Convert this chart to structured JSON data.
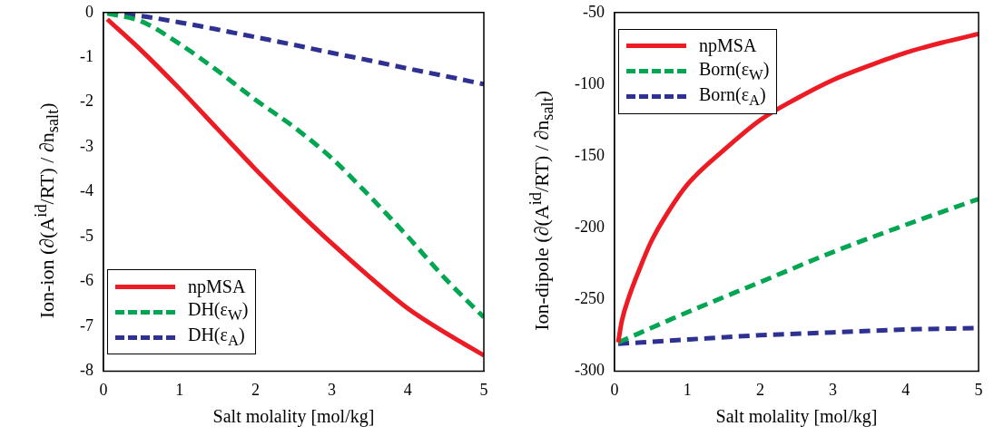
{
  "chart_data": [
    {
      "type": "line",
      "xlabel": "Salt molality [mol/kg]",
      "ylabel": "Ion-ion (∂(A$^{id}$/RT) / ∂n$_{salt}$)",
      "xlim": [
        0,
        5
      ],
      "xticks": [
        0,
        1,
        2,
        3,
        4,
        5
      ],
      "ylim": [
        -8,
        0
      ],
      "yticks": [
        -8,
        -7,
        -6,
        -5,
        -4,
        -3,
        -2,
        -1,
        0
      ],
      "grid": false,
      "legend": "bottom left",
      "marker": "none",
      "series": [
        {
          "name": "npMSA",
          "color": "#ed1c24",
          "line_style": "solid",
          "x": [
            0.05,
            0.5,
            1,
            1.5,
            2,
            2.5,
            3,
            3.5,
            4,
            4.5,
            5
          ],
          "values": [
            -0.15,
            -0.85,
            -1.7,
            -2.6,
            -3.5,
            -4.35,
            -5.15,
            -5.9,
            -6.6,
            -7.15,
            -7.65
          ]
        },
        {
          "name": "DH(ε$_{W}$)",
          "color": "#00a651",
          "line_style": "dashed",
          "x": [
            0.05,
            0.5,
            1,
            1.5,
            2,
            2.5,
            3,
            3.5,
            4,
            4.5,
            5
          ],
          "values": [
            -0.02,
            -0.2,
            -0.7,
            -1.3,
            -1.95,
            -2.55,
            -3.25,
            -4.1,
            -5.0,
            -5.95,
            -6.8
          ]
        },
        {
          "name": "DH(ε$_{A}$)",
          "color": "#2e3192",
          "line_style": "dashed",
          "x": [
            0.05,
            0.5,
            1,
            1.5,
            2,
            2.5,
            3,
            3.5,
            4,
            4.5,
            5
          ],
          "values": [
            0,
            -0.08,
            -0.22,
            -0.38,
            -0.55,
            -0.72,
            -0.9,
            -1.07,
            -1.25,
            -1.42,
            -1.6
          ]
        }
      ]
    },
    {
      "type": "line",
      "xlabel": "Salt molality [mol/kg]",
      "ylabel": "Ion-dipole (∂(A$^{id}$/RT) / ∂n$_{salt}$)",
      "xlim": [
        0,
        5
      ],
      "xticks": [
        0,
        1,
        2,
        3,
        4,
        5
      ],
      "ylim": [
        -300,
        -50
      ],
      "yticks": [
        -300,
        -250,
        -200,
        -150,
        -100,
        -50
      ],
      "grid": false,
      "legend": "top left",
      "marker": "none",
      "series": [
        {
          "name": "npMSA",
          "color": "#ed1c24",
          "line_style": "solid",
          "x": [
            0.05,
            0.1,
            0.2,
            0.35,
            0.5,
            0.75,
            1,
            1.5,
            2,
            2.5,
            3,
            3.5,
            4,
            4.5,
            5
          ],
          "values": [
            -280,
            -265,
            -248,
            -228,
            -210,
            -188,
            -170,
            -146,
            -125,
            -110,
            -97,
            -87,
            -78,
            -71,
            -65
          ]
        },
        {
          "name": "Born(ε$_{W}$)",
          "color": "#00a651",
          "line_style": "dashed",
          "x": [
            0.05,
            1,
            2,
            3,
            4,
            5
          ],
          "values": [
            -280,
            -259,
            -238,
            -217,
            -198,
            -180
          ]
        },
        {
          "name": "Born(ε$_{A}$)",
          "color": "#2e3192",
          "line_style": "dashed",
          "x": [
            0.05,
            1,
            2,
            3,
            4,
            5
          ],
          "values": [
            -281,
            -278,
            -275,
            -273,
            -271,
            -270
          ]
        }
      ]
    }
  ]
}
